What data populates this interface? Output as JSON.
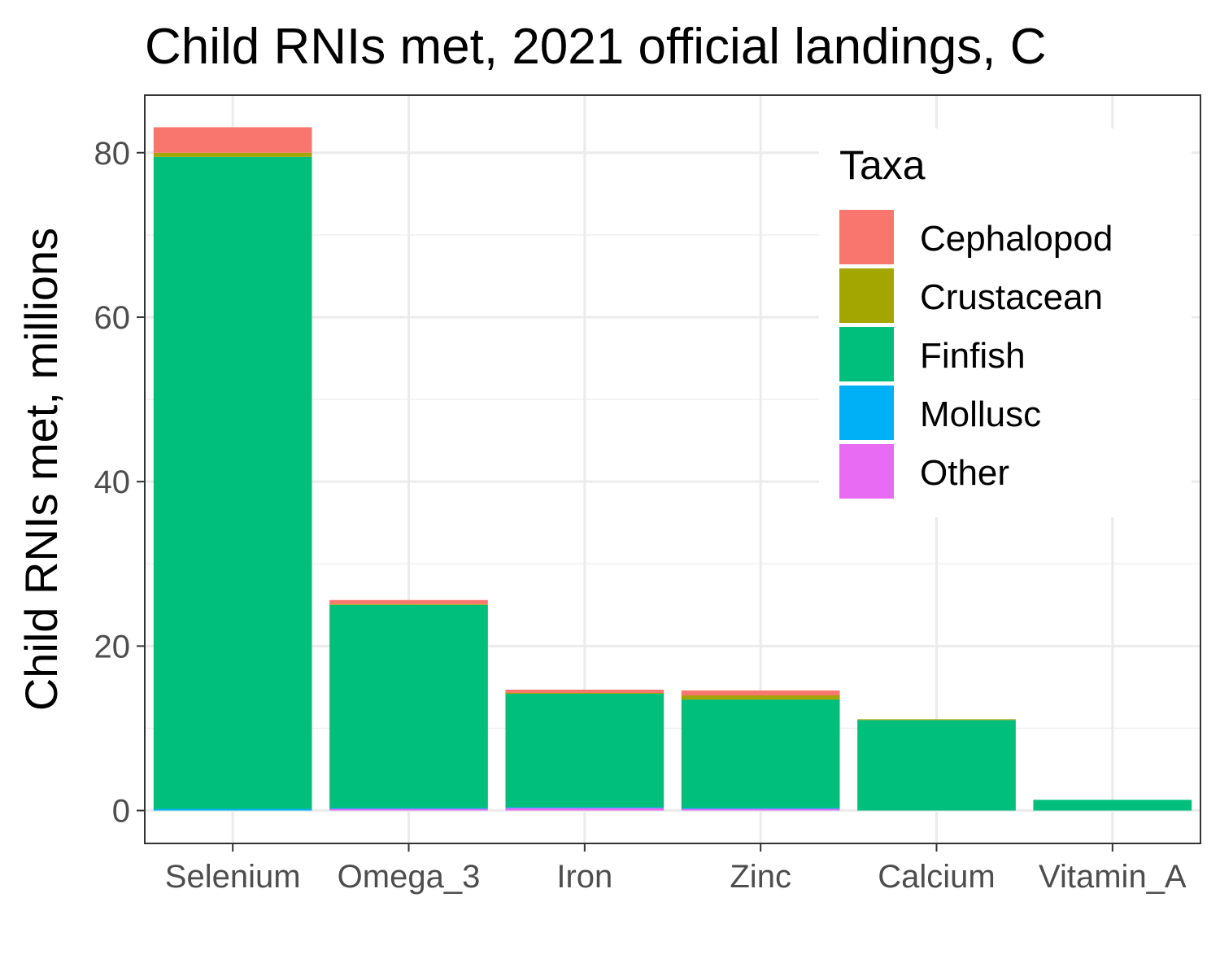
{
  "chart_data": {
    "type": "bar",
    "stacked": true,
    "title": "Child RNIs met, 2021 official landings, C",
    "xlabel": "",
    "ylabel": "Child RNIs met, millions",
    "categories": [
      "Selenium",
      "Omega_3",
      "Iron",
      "Zinc",
      "Calcium",
      "Vitamin_A"
    ],
    "ylim": [
      -4,
      87
    ],
    "yticks": [
      0,
      20,
      40,
      60,
      80
    ],
    "grid": true,
    "legend": {
      "title": "Taxa",
      "position": "top-right"
    },
    "series": [
      {
        "name": "Other",
        "color": "#E76BF3",
        "values": [
          0.0,
          0.2,
          0.3,
          0.2,
          0.0,
          0.0
        ]
      },
      {
        "name": "Mollusc",
        "color": "#00B0F6",
        "values": [
          0.2,
          0.1,
          0.1,
          0.1,
          0.0,
          0.0
        ]
      },
      {
        "name": "Finfish",
        "color": "#00BF7D",
        "values": [
          79.3,
          24.7,
          13.8,
          13.2,
          11.0,
          1.3
        ]
      },
      {
        "name": "Crustacean",
        "color": "#A3A500",
        "values": [
          0.5,
          0.1,
          0.1,
          0.5,
          0.1,
          0.0
        ]
      },
      {
        "name": "Cephalopod",
        "color": "#F8766D",
        "values": [
          3.1,
          0.5,
          0.4,
          0.6,
          0.0,
          0.0
        ]
      }
    ],
    "legend_order": [
      "Cephalopod",
      "Crustacean",
      "Finfish",
      "Mollusc",
      "Other"
    ]
  }
}
